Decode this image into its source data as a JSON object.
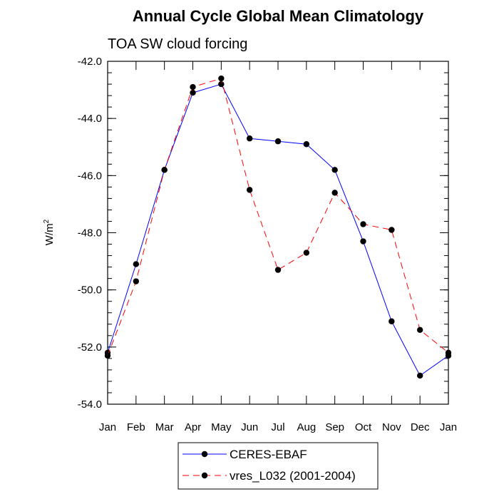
{
  "chart_data": {
    "type": "line",
    "title": "Annual Cycle Global Mean Climatology",
    "subtitle": "TOA SW cloud forcing",
    "xlabel": "",
    "ylabel": "W/m",
    "ylabel_superscript": "2",
    "categories": [
      "Jan",
      "Feb",
      "Mar",
      "Apr",
      "May",
      "Jun",
      "Jul",
      "Aug",
      "Sep",
      "Oct",
      "Nov",
      "Dec",
      "Jan"
    ],
    "ylim": [
      -54.0,
      -42.0
    ],
    "yticks": [
      -54.0,
      -52.0,
      -50.0,
      -48.0,
      -46.0,
      -44.0,
      -42.0
    ],
    "ytick_labels": [
      "-54.0",
      "-52.0",
      "-50.0",
      "-48.0",
      "-46.0",
      "-44.0",
      "-42.0"
    ],
    "yminor_step": 0.4,
    "grid": false,
    "legend_position": "bottom",
    "series": [
      {
        "name": "CERES-EBAF",
        "color": "#0000ff",
        "dash": "solid",
        "values": [
          -52.2,
          -49.1,
          -45.8,
          -43.1,
          -42.8,
          -44.7,
          -44.8,
          -44.9,
          -45.8,
          -48.3,
          -51.1,
          -53.0,
          -52.3
        ]
      },
      {
        "name": "vres_L032 (2001-2004)",
        "color": "#ff0000",
        "dash": "dashed",
        "values": [
          -52.3,
          -49.7,
          -45.8,
          -42.9,
          -42.6,
          -46.5,
          -49.3,
          -48.7,
          -46.6,
          -47.7,
          -47.9,
          -51.4,
          -52.2
        ]
      }
    ]
  }
}
